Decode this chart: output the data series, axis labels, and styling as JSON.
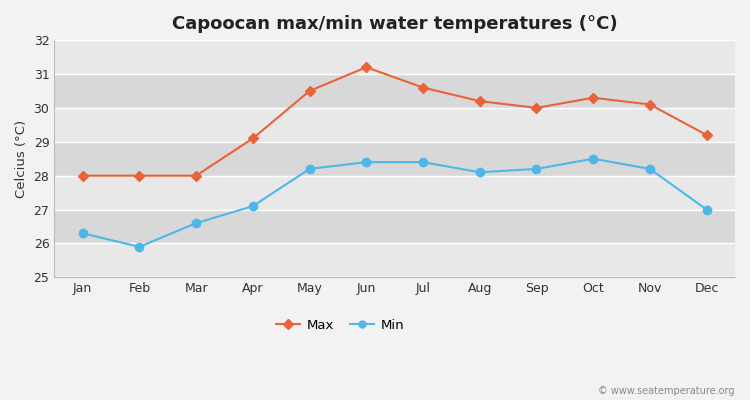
{
  "title": "Capoocan max/min water temperatures (°C)",
  "ylabel": "Celcius (°C)",
  "months": [
    "Jan",
    "Feb",
    "Mar",
    "Apr",
    "May",
    "Jun",
    "Jul",
    "Aug",
    "Sep",
    "Oct",
    "Nov",
    "Dec"
  ],
  "max_temps": [
    28.0,
    28.0,
    28.0,
    29.1,
    30.5,
    31.2,
    30.6,
    30.2,
    30.0,
    30.3,
    30.1,
    29.2
  ],
  "min_temps": [
    26.3,
    25.9,
    26.6,
    27.1,
    28.2,
    28.4,
    28.4,
    28.1,
    28.2,
    28.5,
    28.2,
    27.0
  ],
  "max_color": "#e8633a",
  "min_color": "#4db8e8",
  "ylim": [
    25,
    32
  ],
  "yticks": [
    25,
    26,
    27,
    28,
    29,
    30,
    31,
    32
  ],
  "band_colors": [
    "#e8e8e8",
    "#d8d8d8"
  ],
  "outer_bg": "#f2f2f2",
  "grid_color": "#ffffff",
  "watermark": "© www.seatemperature.org",
  "title_fontsize": 13,
  "label_fontsize": 9.5,
  "tick_fontsize": 9,
  "legend_labels": [
    "Max",
    "Min"
  ]
}
